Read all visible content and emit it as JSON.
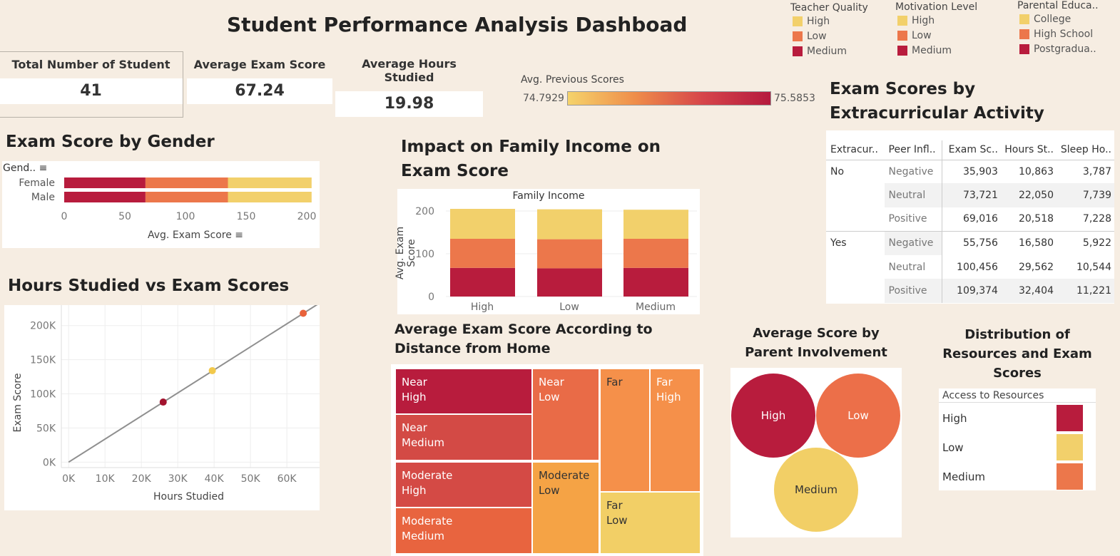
{
  "dashboard_title": "Student Performance Analysis Dashboad",
  "colors": {
    "high": "#f2d06b",
    "low": "#ec774b",
    "medium": "#b81c3d",
    "background": "#f6ede2"
  },
  "kpis": [
    {
      "label": "Total Number of Student",
      "value": "41"
    },
    {
      "label": "Average Exam Score",
      "value": "67.24"
    },
    {
      "label": "Average Hours Studied",
      "value": "19.98"
    }
  ],
  "legends": [
    {
      "title": "Teacher Quality",
      "items": [
        {
          "label": "High",
          "color": "#f2d06b"
        },
        {
          "label": "Low",
          "color": "#ec774b"
        },
        {
          "label": "Medium",
          "color": "#b81c3d"
        }
      ]
    },
    {
      "title": "Motivation Level",
      "items": [
        {
          "label": "High",
          "color": "#f2d06b"
        },
        {
          "label": "Low",
          "color": "#ec774b"
        },
        {
          "label": "Medium",
          "color": "#b81c3d"
        }
      ]
    },
    {
      "title": "Parental Educa..",
      "items": [
        {
          "label": "College",
          "color": "#f2d06b"
        },
        {
          "label": "High School",
          "color": "#ec774b"
        },
        {
          "label": "Postgradua..",
          "color": "#b81c3d"
        }
      ]
    }
  ],
  "prev_scores": {
    "label": "Avg. Previous Scores",
    "min": "74.7929",
    "max": "75.5853"
  },
  "gender_chart": {
    "title": "Exam Score by Gender",
    "row_header": "Gend..",
    "xlabel": "Avg. Exam Score",
    "ticks": [
      "0",
      "50",
      "100",
      "150",
      "200"
    ]
  },
  "scatter_chart": {
    "title": "Hours Studied vs Exam Scores",
    "xlabel": "Hours Studied",
    "ylabel": "Exam Score",
    "xticks": [
      "0K",
      "10K",
      "20K",
      "30K",
      "40K",
      "50K",
      "60K"
    ],
    "yticks": [
      "0K",
      "50K",
      "100K",
      "150K",
      "200K"
    ]
  },
  "income_chart": {
    "title": "Impact on Family Income on Exam Score",
    "header": "Family Income",
    "ylabel": "Avg. Exam Score",
    "yticks": [
      "0",
      "100",
      "200"
    ]
  },
  "distance_chart": {
    "title": "Average Exam Score According to Distance from Home",
    "cells": [
      {
        "line1": "Near",
        "line2": "High",
        "color": "#b81c3d",
        "text": "#fff"
      },
      {
        "line1": "Near",
        "line2": "Medium",
        "color": "#d34a45",
        "text": "#fff"
      },
      {
        "line1": "Near",
        "line2": "Low",
        "color": "#e96b47",
        "text": "#fff"
      },
      {
        "line1": "Moderate",
        "line2": "High",
        "color": "#d44a45",
        "text": "#fff"
      },
      {
        "line1": "Moderate",
        "line2": "Medium",
        "color": "#e8643f",
        "text": "#fff"
      },
      {
        "line1": "Moderate",
        "line2": "Low",
        "color": "#f5a345",
        "text": "#333"
      },
      {
        "line1": "Far",
        "line2": "",
        "color": "#f5904a",
        "text": "#333"
      },
      {
        "line1": "Far",
        "line2": "High",
        "color": "#f5904a",
        "text": "#fff"
      },
      {
        "line1": "Far",
        "line2": "Low",
        "color": "#f2cf66",
        "text": "#333"
      }
    ]
  },
  "extra_table": {
    "title": "Exam Scores by Extracurricular Activity",
    "headers": [
      "Extracur..",
      "Peer Infl..",
      "Exam Sc..",
      "Hours St..",
      "Sleep Ho.."
    ],
    "groups": [
      {
        "name": "No",
        "rows": [
          [
            "Negative",
            "35,903",
            "10,863",
            "3,787"
          ],
          [
            "Neutral",
            "73,721",
            "22,050",
            "7,739"
          ],
          [
            "Positive",
            "69,016",
            "20,518",
            "7,228"
          ]
        ]
      },
      {
        "name": "Yes",
        "rows": [
          [
            "Negative",
            "55,756",
            "16,580",
            "5,922"
          ],
          [
            "Neutral",
            "100,456",
            "29,562",
            "10,544"
          ],
          [
            "Positive",
            "109,374",
            "32,404",
            "11,221"
          ]
        ]
      }
    ]
  },
  "parent_involvement": {
    "title": "Average Score by Parent Involvement",
    "bubbles": [
      {
        "label": "High",
        "color": "#b81c3d",
        "text": "#fff"
      },
      {
        "label": "Low",
        "color": "#ec6f49",
        "text": "#fff"
      },
      {
        "label": "Medium",
        "color": "#f2cf66",
        "text": "#333"
      }
    ]
  },
  "resources": {
    "title": "Distribution of Resources and Exam Scores",
    "header": "Access to Resources",
    "rows": [
      {
        "label": "High",
        "color": "#b81c3d"
      },
      {
        "label": "Low",
        "color": "#f2d06b"
      },
      {
        "label": "Medium",
        "color": "#ec774b"
      }
    ]
  },
  "chart_data": [
    {
      "type": "bar",
      "title": "Exam Score by Gender",
      "orientation": "horizontal-stacked",
      "categories": [
        "Female",
        "Male"
      ],
      "series": [
        {
          "name": "Medium",
          "values": [
            67,
            67
          ]
        },
        {
          "name": "Low",
          "values": [
            68,
            68
          ]
        },
        {
          "name": "High",
          "values": [
            69,
            69
          ]
        }
      ],
      "xlabel": "Avg. Exam Score",
      "xlim": [
        0,
        210
      ]
    },
    {
      "type": "scatter",
      "title": "Hours Studied vs Exam Scores",
      "xlabel": "Hours Studied",
      "ylabel": "Exam Score",
      "points": [
        {
          "x": 26000,
          "y": 88000,
          "color": "#a3132f"
        },
        {
          "x": 39500,
          "y": 134000,
          "color": "#f2c94c"
        },
        {
          "x": 64500,
          "y": 218000,
          "color": "#e8623b"
        }
      ],
      "trend_line": [
        [
          0,
          0
        ],
        [
          69000,
          233000
        ]
      ],
      "xlim": [
        -2000,
        69000
      ],
      "ylim": [
        -8000,
        230000
      ]
    },
    {
      "type": "bar",
      "title": "Impact on Family Income on Exam Score",
      "orientation": "vertical-stacked",
      "categories": [
        "High",
        "Low",
        "Medium"
      ],
      "series": [
        {
          "name": "Medium",
          "values": [
            67,
            66,
            67
          ]
        },
        {
          "name": "Low",
          "values": [
            68,
            68,
            68
          ]
        },
        {
          "name": "High",
          "values": [
            70,
            70,
            68
          ]
        }
      ],
      "ylabel": "Avg. Exam Score",
      "ylim": [
        -20,
        210
      ]
    }
  ]
}
